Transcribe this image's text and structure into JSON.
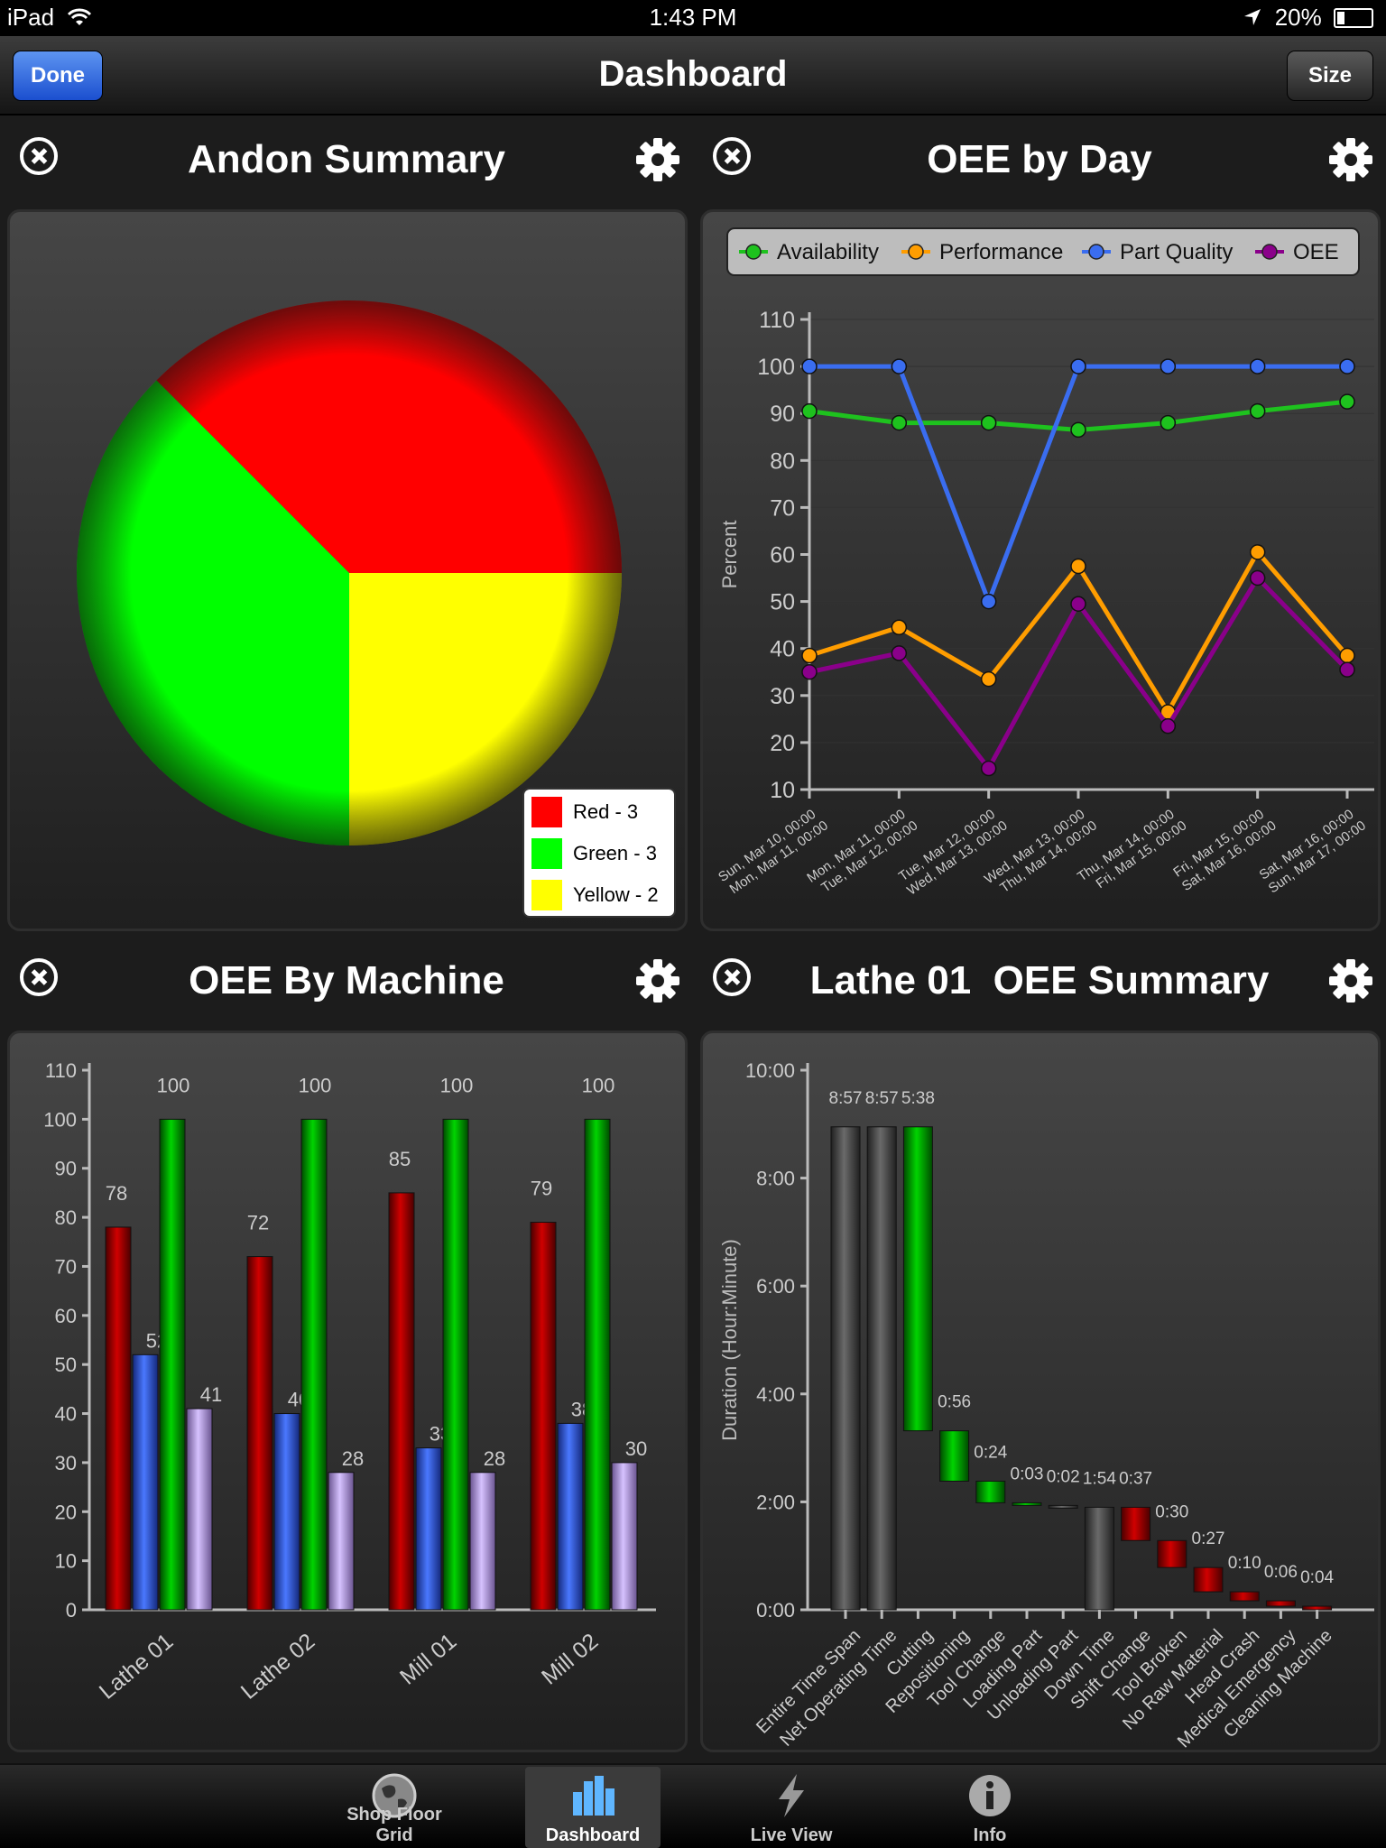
{
  "status": {
    "device": "iPad",
    "time": "1:43 PM",
    "battery": "20%"
  },
  "nav": {
    "title": "Dashboard",
    "done": "Done",
    "size": "Size"
  },
  "panels": {
    "andon": {
      "title": "Andon Summary"
    },
    "oee_day": {
      "title": "OEE by Day"
    },
    "oee_machine": {
      "title": "OEE By Machine"
    },
    "lathe_summary": {
      "title": "Lathe 01  OEE Summary"
    }
  },
  "tabs": [
    {
      "label": "Shop Floor Grid",
      "icon": "globe-icon"
    },
    {
      "label": "Dashboard",
      "icon": "bar-chart-icon"
    },
    {
      "label": "Live View",
      "icon": "lightning-icon"
    },
    {
      "label": "Info",
      "icon": "info-icon"
    }
  ],
  "chart_data": [
    {
      "type": "pie",
      "title": "Andon Summary",
      "slices": [
        {
          "label": "Red - 3",
          "value": 3,
          "color": "#ff0000"
        },
        {
          "label": "Yellow - 2",
          "value": 2,
          "color": "#ffff00"
        },
        {
          "label": "Green - 3",
          "value": 3,
          "color": "#00ff00"
        }
      ],
      "legend": [
        "Red - 3",
        "Green - 3",
        "Yellow - 2"
      ],
      "legend_position": "bottom-right"
    },
    {
      "type": "line",
      "title": "OEE by Day",
      "ylabel": "Percent",
      "ylim": [
        10,
        110
      ],
      "yticks": [
        10,
        20,
        30,
        40,
        50,
        60,
        70,
        80,
        90,
        100,
        110
      ],
      "categories": [
        [
          "Sun, Mar 10, 00:00",
          "Mon, Mar 11, 00:00"
        ],
        [
          "Mon, Mar 11, 00:00",
          "Tue, Mar 12, 00:00"
        ],
        [
          "Tue, Mar 12, 00:00",
          "Wed, Mar 13, 00:00"
        ],
        [
          "Wed, Mar 13, 00:00",
          "Thu, Mar 14, 00:00"
        ],
        [
          "Thu, Mar 14, 00:00",
          "Fri, Mar 15, 00:00"
        ],
        [
          "Fri, Mar 15, 00:00",
          "Sat, Mar 16, 00:00"
        ],
        [
          "Sat, Mar 16, 00:00",
          "Sun, Mar 17, 00:00"
        ]
      ],
      "series": [
        {
          "name": "Availability",
          "color": "#1ec21e",
          "values": [
            90.5,
            88,
            88,
            86.5,
            88,
            90.5,
            92.5
          ]
        },
        {
          "name": "Performance",
          "color": "#ff9d00",
          "values": [
            38.5,
            44.5,
            33.5,
            57.5,
            26.5,
            60.5,
            38.5
          ]
        },
        {
          "name": "Part Quality",
          "color": "#3a6df0",
          "values": [
            100,
            100,
            50,
            100,
            100,
            100,
            100
          ]
        },
        {
          "name": "OEE",
          "color": "#8a008a",
          "values": [
            35,
            39,
            14.5,
            49.5,
            23.5,
            55,
            35.5
          ]
        }
      ],
      "legend_position": "top",
      "grid": true
    },
    {
      "type": "bar",
      "title": "OEE By Machine",
      "categories": [
        "Lathe 01",
        "Lathe 02",
        "Mill 01",
        "Mill 02"
      ],
      "ylim": [
        0,
        110
      ],
      "yticks": [
        0,
        10,
        20,
        30,
        40,
        50,
        60,
        70,
        80,
        90,
        100,
        110
      ],
      "series": [
        {
          "color": "#b00000",
          "values": [
            78,
            72,
            85,
            79
          ]
        },
        {
          "color": "#2f56d8",
          "values": [
            52,
            40,
            33,
            38
          ]
        },
        {
          "color": "#00b400",
          "values": [
            100,
            100,
            100,
            100
          ]
        },
        {
          "color": "#b79ae6",
          "values": [
            41,
            28,
            28,
            30
          ]
        }
      ]
    },
    {
      "type": "bar",
      "subtype": "waterfall",
      "title": "Lathe 01  OEE Summary",
      "ylabel": "Duration (Hour:Minute)",
      "ylim": [
        0,
        600
      ],
      "yticks": [
        {
          "value": 0,
          "label": "0:00"
        },
        {
          "value": 120,
          "label": "2:00"
        },
        {
          "value": 240,
          "label": "4:00"
        },
        {
          "value": 360,
          "label": "6:00"
        },
        {
          "value": 480,
          "label": "8:00"
        },
        {
          "value": 600,
          "label": "10:00"
        }
      ],
      "bars": [
        {
          "category": "Entire Time Span",
          "label": "8:57",
          "start": 0,
          "end": 537,
          "color": "gray"
        },
        {
          "category": "Net Operating Time",
          "label": "8:57",
          "start": 0,
          "end": 537,
          "color": "gray"
        },
        {
          "category": "Cutting",
          "label": "5:38",
          "start": 199,
          "end": 537,
          "color": "green"
        },
        {
          "category": "Repositioning",
          "label": "0:56",
          "start": 143,
          "end": 199,
          "color": "green"
        },
        {
          "category": "Tool Change",
          "label": "0:24",
          "start": 119,
          "end": 143,
          "color": "green"
        },
        {
          "category": "Loading Part",
          "label": "0:03",
          "start": 116,
          "end": 119,
          "color": "green"
        },
        {
          "category": "Unloading Part",
          "label": "0:02",
          "start": 114,
          "end": 116,
          "color": "gray"
        },
        {
          "category": "Down Time",
          "label": "1:54",
          "start": 0,
          "end": 114,
          "color": "gray"
        },
        {
          "category": "Shift Change",
          "label": "0:37",
          "start": 77,
          "end": 114,
          "color": "red"
        },
        {
          "category": "Tool Broken",
          "label": "0:30",
          "start": 47,
          "end": 77,
          "color": "red"
        },
        {
          "category": "No Raw Material",
          "label": "0:27",
          "start": 20,
          "end": 47,
          "color": "red"
        },
        {
          "category": "Head Crash",
          "label": "0:10",
          "start": 10,
          "end": 20,
          "color": "red"
        },
        {
          "category": "Medical Emergency",
          "label": "0:06",
          "start": 4,
          "end": 10,
          "color": "red"
        },
        {
          "category": "Cleaning Machine",
          "label": "0:04",
          "start": 0,
          "end": 4,
          "color": "red"
        }
      ]
    }
  ]
}
